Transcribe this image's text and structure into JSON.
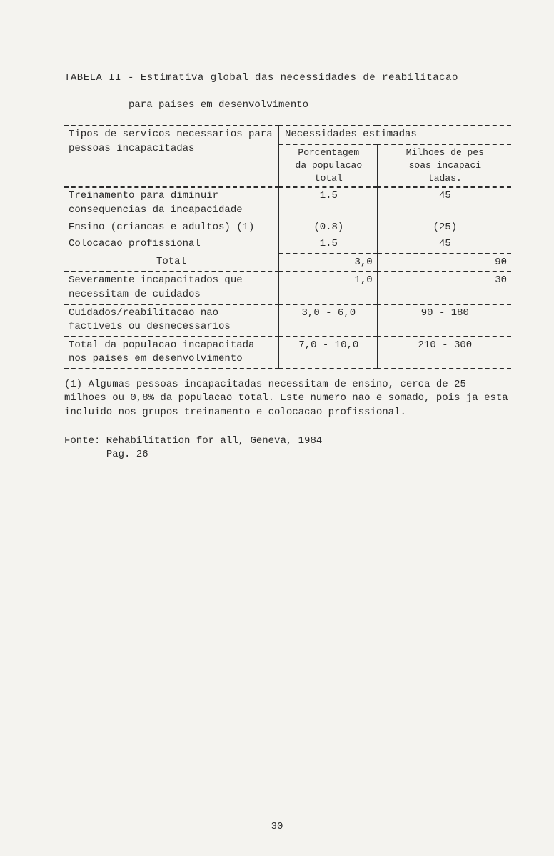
{
  "title": "TABELA II - Estimativa global das necessidades de reabilitacao",
  "subtitle": "para paises em desenvolvimento",
  "headers": {
    "col1": "Tipos de servicos necessarios para pessoas incapacitadas",
    "col2_top": "Necessidades estimadas",
    "col2a_line1": "Porcentagem",
    "col2a_line2": "da populacao",
    "col2a_line3": "total",
    "col2b_line1": "Milhoes de pes",
    "col2b_line2": "soas  incapaci",
    "col2b_line3": "tadas."
  },
  "rows": [
    {
      "label": "Treinamento para diminuir consequencias da incapacidade",
      "pct": "1.5",
      "num": "45"
    },
    {
      "label": "Ensino (criancas e adultos) (1)",
      "pct": "(0.8)",
      "num": "(25)"
    },
    {
      "label": "Colocacao profissional",
      "pct": "1.5",
      "num": "45"
    }
  ],
  "total_row": {
    "label": "Total",
    "pct": "3,0",
    "num": "90"
  },
  "severe_row": {
    "label": "Severamente incapacitados que necessitam de cuidados",
    "pct": "1,0",
    "num": "30"
  },
  "cuidados_row": {
    "label": "Cuidados/reabilitacao nao factiveis ou desnecessarios",
    "pct": "3,0 - 6,0",
    "num": "90 - 180"
  },
  "grand_total_row": {
    "label": "Total da populacao incapacitada nos paises em desenvolvimento",
    "pct": "7,0 - 10,0",
    "num": "210 - 300"
  },
  "footnote": "(1) Algumas pessoas incapacitadas necessitam de ensino, cerca de 25 milhoes ou  0,8% da populacao total.  Este numero nao e somado, pois ja esta incluido nos grupos treinamento e colocacao profissional.",
  "fonte_line1": "Fonte: Rehabilitation for all, Geneva, 1984",
  "fonte_line2": "Pag. 26",
  "page_number": "30",
  "colors": {
    "background": "#f4f3ef",
    "text": "#2a2a2a"
  }
}
